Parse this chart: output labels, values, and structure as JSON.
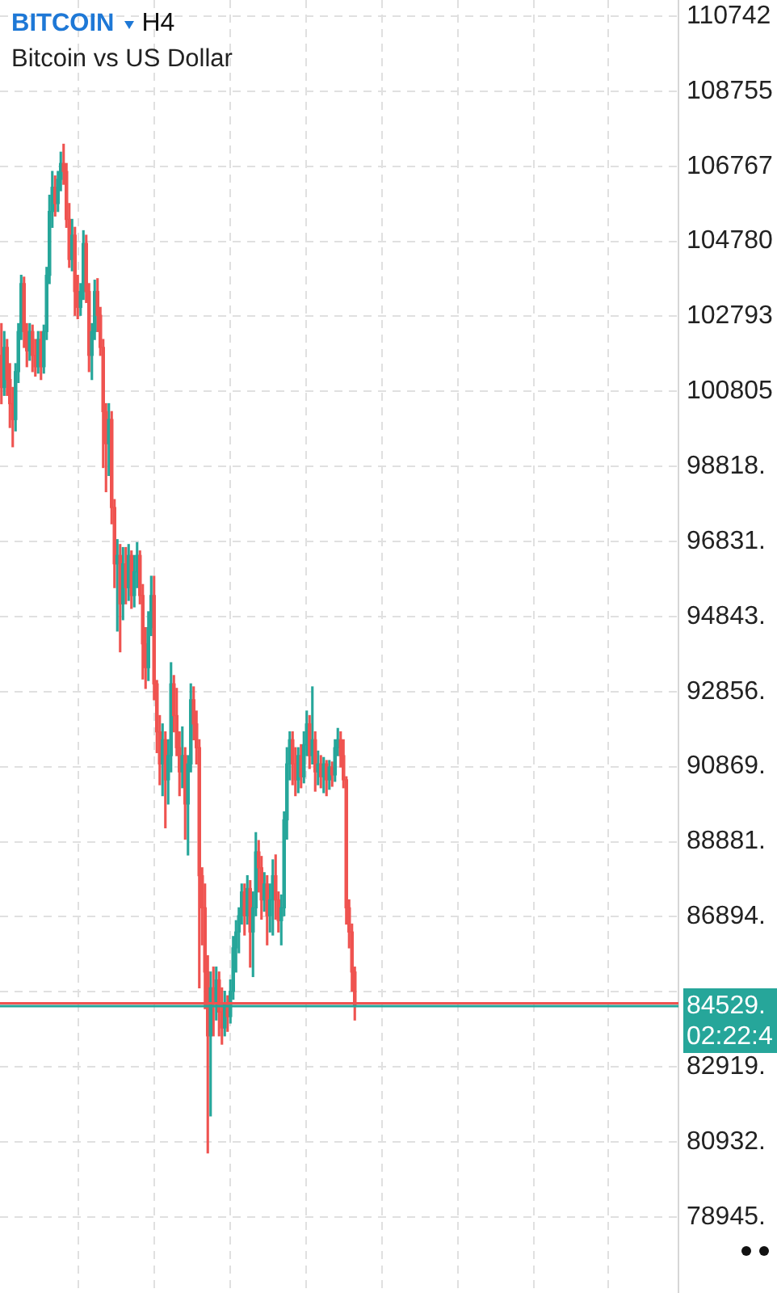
{
  "chart_data": {
    "type": "candlestick",
    "title": "BITCOIN",
    "subtitle": "Bitcoin vs US Dollar",
    "annotations": [
      "H4",
      "02:22:4"
    ],
    "categories": [
      null,
      null,
      null,
      null,
      null,
      null,
      null,
      null,
      null,
      null,
      null,
      null,
      null,
      null,
      null,
      null,
      null,
      null,
      null,
      null,
      null,
      null,
      null,
      null,
      null,
      null,
      null,
      null,
      null,
      null,
      null,
      null,
      null,
      null,
      null,
      null,
      null,
      null,
      null,
      null,
      null,
      null,
      null,
      null,
      null,
      null,
      null,
      null,
      null,
      null,
      null,
      null,
      null,
      null,
      null,
      null,
      null,
      null,
      null,
      null,
      null,
      null,
      null,
      null,
      null,
      null,
      null,
      null,
      null,
      null,
      null,
      null,
      null,
      null,
      null,
      null,
      null,
      null,
      null,
      null,
      null,
      null,
      null,
      null,
      null,
      null,
      null,
      null,
      null,
      null,
      null,
      null,
      null,
      null,
      null,
      null,
      null,
      null,
      null,
      null,
      null,
      null,
      null,
      null,
      null,
      null,
      null,
      null,
      null,
      null,
      null,
      null,
      null,
      null,
      null,
      null,
      null,
      null,
      null,
      null,
      null,
      null,
      null,
      null,
      null,
      null,
      null,
      null,
      null,
      null,
      null,
      null,
      null,
      null,
      null,
      null,
      null,
      null,
      null,
      null,
      null,
      null,
      null,
      null,
      null,
      null,
      null,
      null,
      null,
      null,
      null,
      null,
      null,
      null,
      null,
      null,
      null,
      null,
      null,
      null,
      null,
      null,
      null,
      null,
      null,
      null,
      null,
      null,
      null,
      null,
      null,
      null,
      null,
      null,
      null,
      null,
      null,
      null,
      null,
      null,
      null,
      null,
      null,
      null,
      null,
      null,
      null,
      null,
      null,
      null,
      null,
      null,
      null,
      null,
      null,
      null,
      null,
      null,
      null,
      null,
      null,
      null,
      null,
      null,
      null,
      null,
      null,
      null,
      null,
      null,
      null,
      null,
      null,
      null,
      null,
      null,
      null,
      null,
      null,
      null,
      null,
      null,
      null,
      null,
      null,
      null,
      null,
      null,
      null,
      null,
      null,
      null,
      null,
      null,
      null,
      null,
      null,
      null,
      null,
      null
    ],
    "ohlc": [
      [
        101760,
        102600,
        100480,
        100910
      ],
      [
        100910,
        102390,
        100700,
        101970
      ],
      [
        101970,
        102180,
        100700,
        101120
      ],
      [
        101120,
        101540,
        99850,
        100480
      ],
      [
        100480,
        100910,
        99340,
        100060
      ],
      [
        100060,
        101540,
        99760,
        101330
      ],
      [
        101330,
        102600,
        101040,
        102390
      ],
      [
        102390,
        103880,
        102180,
        103660
      ],
      [
        103660,
        103830,
        101970,
        102390
      ],
      [
        102390,
        102600,
        101460,
        101880
      ],
      [
        101880,
        102600,
        101630,
        102390
      ],
      [
        102390,
        102560,
        101330,
        101760
      ],
      [
        101760,
        102180,
        101210,
        101460
      ],
      [
        101460,
        102390,
        101290,
        102180
      ],
      [
        102180,
        102390,
        101120,
        101460
      ],
      [
        101460,
        102560,
        101290,
        102390
      ],
      [
        102390,
        104090,
        102180,
        103880
      ],
      [
        103880,
        106000,
        103660,
        105570
      ],
      [
        105570,
        106630,
        105150,
        106210
      ],
      [
        106210,
        106510,
        105450,
        105780
      ],
      [
        105780,
        106630,
        105570,
        106420
      ],
      [
        106420,
        107140,
        106120,
        106840
      ],
      [
        106840,
        107350,
        106290,
        106630
      ],
      [
        106630,
        106840,
        105150,
        105360
      ],
      [
        105360,
        105780,
        104090,
        104300
      ],
      [
        104300,
        105360,
        104000,
        104940
      ],
      [
        104940,
        105150,
        102820,
        103450
      ],
      [
        103450,
        103880,
        102730,
        103030
      ],
      [
        103030,
        103660,
        102820,
        103450
      ],
      [
        103450,
        105060,
        103240,
        104720
      ],
      [
        104720,
        104940,
        103160,
        103450
      ],
      [
        103450,
        103660,
        101330,
        101760
      ],
      [
        101760,
        102600,
        101120,
        102390
      ],
      [
        102390,
        103750,
        102180,
        103450
      ],
      [
        103450,
        103790,
        102390,
        102820
      ],
      [
        102820,
        103030,
        101760,
        101970
      ],
      [
        101970,
        102180,
        98790,
        100270
      ],
      [
        100270,
        100480,
        98150,
        99420
      ],
      [
        99420,
        100480,
        98580,
        100060
      ],
      [
        100060,
        100270,
        97300,
        97730
      ],
      [
        97730,
        97940,
        95610,
        96240
      ],
      [
        96240,
        96880,
        94460,
        96460
      ],
      [
        96460,
        96750,
        93910,
        95180
      ],
      [
        95180,
        96670,
        94760,
        96240
      ],
      [
        96240,
        96670,
        95180,
        95610
      ],
      [
        95610,
        96750,
        95270,
        96460
      ],
      [
        96460,
        96580,
        95060,
        95400
      ],
      [
        95400,
        96460,
        95100,
        96030
      ],
      [
        96030,
        96800,
        95610,
        96460
      ],
      [
        96460,
        96580,
        95180,
        95400
      ],
      [
        95400,
        95690,
        93190,
        94120
      ],
      [
        94120,
        94550,
        92940,
        93490
      ],
      [
        93490,
        94970,
        93150,
        94550
      ],
      [
        94550,
        95910,
        94340,
        95400
      ],
      [
        95400,
        95910,
        92640,
        93060
      ],
      [
        93060,
        93150,
        91240,
        91790
      ],
      [
        91790,
        92220,
        90390,
        90940
      ],
      [
        90940,
        92000,
        90100,
        91580
      ],
      [
        91580,
        91790,
        89250,
        90520
      ],
      [
        90520,
        91580,
        89880,
        91160
      ],
      [
        91160,
        93620,
        90730,
        93060
      ],
      [
        93060,
        93280,
        91790,
        92220
      ],
      [
        92220,
        92940,
        91160,
        91370
      ],
      [
        91370,
        91790,
        90100,
        90730
      ],
      [
        90730,
        91920,
        90310,
        91160
      ],
      [
        91160,
        91370,
        88950,
        89880
      ],
      [
        89880,
        91160,
        88530,
        90940
      ],
      [
        90940,
        93060,
        90730,
        92640
      ],
      [
        92640,
        92980,
        91580,
        92000
      ],
      [
        92000,
        92340,
        90940,
        91370
      ],
      [
        91370,
        91580,
        85010,
        87980
      ],
      [
        87980,
        88190,
        86150,
        87130
      ],
      [
        87130,
        87760,
        84460,
        85430
      ],
      [
        85430,
        85860,
        80640,
        83740
      ],
      [
        83740,
        85430,
        81620,
        85010
      ],
      [
        85010,
        85560,
        83740,
        84580
      ],
      [
        84580,
        85560,
        84160,
        85220
      ],
      [
        85220,
        85430,
        83740,
        84370
      ],
      [
        84370,
        85010,
        83520,
        83950
      ],
      [
        83950,
        84920,
        83740,
        84580
      ],
      [
        84580,
        84800,
        83860,
        84250
      ],
      [
        84250,
        85220,
        84080,
        84920
      ],
      [
        84920,
        86370,
        84710,
        86070
      ],
      [
        86070,
        86790,
        85430,
        86490
      ],
      [
        86490,
        87130,
        85940,
        86920
      ],
      [
        86920,
        87760,
        86700,
        87550
      ],
      [
        87550,
        87760,
        86410,
        86920
      ],
      [
        86920,
        87980,
        86700,
        87640
      ],
      [
        87640,
        87850,
        85560,
        86490
      ],
      [
        86490,
        87550,
        85310,
        87130
      ],
      [
        87130,
        89120,
        86920,
        88610
      ],
      [
        88610,
        88910,
        87550,
        88190
      ],
      [
        88190,
        88490,
        86830,
        87340
      ],
      [
        87340,
        88060,
        87040,
        87760
      ],
      [
        87760,
        87980,
        86150,
        86920
      ],
      [
        86920,
        87760,
        86490,
        87340
      ],
      [
        87340,
        88400,
        86410,
        87980
      ],
      [
        87980,
        88530,
        86830,
        87340
      ],
      [
        87340,
        87550,
        86490,
        86790
      ],
      [
        86790,
        87470,
        86150,
        87130
      ],
      [
        87130,
        89670,
        86920,
        89460
      ],
      [
        89460,
        91370,
        88950,
        90940
      ],
      [
        90940,
        91790,
        90520,
        91580
      ],
      [
        91580,
        91790,
        90390,
        90940
      ],
      [
        90940,
        91370,
        90100,
        90520
      ],
      [
        90520,
        91370,
        90180,
        91160
      ],
      [
        91160,
        91450,
        90310,
        90600
      ],
      [
        90600,
        91790,
        90440,
        91450
      ],
      [
        91450,
        92340,
        91160,
        92000
      ],
      [
        92000,
        92220,
        90820,
        91160
      ],
      [
        91160,
        92980,
        90940,
        91580
      ],
      [
        91580,
        91790,
        90220,
        90730
      ],
      [
        90730,
        91280,
        90390,
        90940
      ],
      [
        90940,
        91160,
        90310,
        90600
      ],
      [
        90600,
        91110,
        90180,
        90940
      ],
      [
        90940,
        91030,
        90100,
        90520
      ],
      [
        90520,
        91030,
        90270,
        90860
      ],
      [
        90860,
        90990,
        90350,
        90650
      ],
      [
        90650,
        91580,
        90480,
        91370
      ],
      [
        91370,
        91880,
        91160,
        91580
      ],
      [
        91580,
        91790,
        90860,
        91160
      ],
      [
        91160,
        91580,
        90310,
        90520
      ],
      [
        90520,
        90600,
        86700,
        87130
      ],
      [
        87130,
        87340,
        86070,
        86490
      ],
      [
        86490,
        86700,
        84920,
        85430
      ],
      [
        85430,
        85560,
        84160,
        84529
      ],
      null,
      null,
      null,
      null,
      null,
      null,
      null,
      null,
      null,
      null,
      null,
      null,
      null,
      null,
      null,
      null,
      null,
      null,
      null,
      null,
      null,
      null,
      null,
      null,
      null,
      null,
      null,
      null,
      null,
      null,
      null,
      null,
      null,
      null,
      null,
      null,
      null,
      null,
      null,
      null,
      null,
      null,
      null,
      null,
      null,
      null,
      null,
      null,
      null,
      null,
      null,
      null,
      null,
      null,
      null,
      null,
      null,
      null,
      null,
      null,
      null,
      null,
      null,
      null,
      null,
      null,
      null,
      null,
      null,
      null,
      null,
      null,
      null,
      null,
      null,
      null,
      null,
      null,
      null,
      null,
      null,
      null,
      null,
      null,
      null,
      null,
      null,
      null,
      null,
      null,
      null,
      null,
      null,
      null,
      null,
      null,
      null,
      null,
      null,
      null,
      null,
      null,
      null,
      null,
      null,
      null,
      null,
      null,
      null,
      null,
      null,
      null,
      null,
      null
    ],
    "colors": [
      "#ef5350",
      "#26a69a",
      "#ef5350",
      "#ef5350",
      "#ef5350",
      "#26a69a",
      "#26a69a",
      "#26a69a",
      "#ef5350",
      "#ef5350",
      "#26a69a",
      "#ef5350",
      "#ef5350",
      "#26a69a",
      "#ef5350",
      "#26a69a",
      "#26a69a",
      "#26a69a",
      "#26a69a",
      "#ef5350",
      "#26a69a",
      "#26a69a",
      "#ef5350",
      "#ef5350",
      "#ef5350",
      "#26a69a",
      "#ef5350",
      "#ef5350",
      "#26a69a",
      "#26a69a",
      "#ef5350",
      "#ef5350",
      "#26a69a",
      "#26a69a",
      "#ef5350",
      "#ef5350",
      "#ef5350",
      "#ef5350",
      "#26a69a",
      "#ef5350",
      "#ef5350",
      "#26a69a",
      "#ef5350",
      "#26a69a",
      "#ef5350",
      "#26a69a",
      "#ef5350",
      "#26a69a",
      "#26a69a",
      "#ef5350",
      "#ef5350",
      "#ef5350",
      "#26a69a",
      "#26a69a",
      "#ef5350",
      "#ef5350",
      "#ef5350",
      "#26a69a",
      "#ef5350",
      "#26a69a",
      "#26a69a",
      "#ef5350",
      "#ef5350",
      "#ef5350",
      "#26a69a",
      "#ef5350",
      "#26a69a",
      "#26a69a",
      "#ef5350",
      "#ef5350",
      "#ef5350",
      "#ef5350",
      "#ef5350",
      "#ef5350",
      "#26a69a",
      "#ef5350",
      "#26a69a",
      "#ef5350",
      "#ef5350",
      "#26a69a",
      "#ef5350",
      "#26a69a",
      "#26a69a",
      "#26a69a",
      "#26a69a",
      "#26a69a",
      "#ef5350",
      "#26a69a",
      "#ef5350",
      "#26a69a",
      "#26a69a",
      "#ef5350",
      "#ef5350",
      "#26a69a",
      "#ef5350",
      "#26a69a",
      "#26a69a",
      "#ef5350",
      "#ef5350",
      "#26a69a",
      "#26a69a",
      "#26a69a",
      "#26a69a",
      "#ef5350",
      "#ef5350",
      "#26a69a",
      "#ef5350",
      "#26a69a",
      "#26a69a",
      "#ef5350",
      "#26a69a",
      "#ef5350",
      "#26a69a",
      "#ef5350",
      "#26a69a",
      "#ef5350",
      "#26a69a",
      "#ef5350",
      "#26a69a",
      "#26a69a",
      "#ef5350",
      "#ef5350",
      "#ef5350",
      "#ef5350",
      "#ef5350",
      "#ef5350",
      null,
      null,
      null,
      null,
      null,
      null,
      null,
      null,
      null,
      null,
      null,
      null,
      null,
      null,
      null,
      null,
      null,
      null,
      null,
      null,
      null,
      null,
      null,
      null,
      null,
      null,
      null,
      null,
      null,
      null,
      null,
      null,
      null,
      null,
      null,
      null,
      null,
      null,
      null,
      null,
      null,
      null,
      null,
      null,
      null,
      null,
      null,
      null,
      null,
      null,
      null,
      null,
      null,
      null,
      null,
      null,
      null,
      null,
      null,
      null,
      null,
      null,
      null,
      null,
      null,
      null,
      null,
      null,
      null,
      null,
      null,
      null,
      null,
      null,
      null,
      null,
      null,
      null,
      null,
      null,
      null,
      null,
      null,
      null,
      null,
      null,
      null,
      null,
      null,
      null,
      null,
      null,
      null,
      null,
      null,
      null,
      null,
      null,
      null,
      null,
      null,
      null,
      null,
      null,
      null,
      null,
      null,
      null,
      null,
      null,
      null,
      null,
      null,
      null
    ],
    "ylim": [
      76930,
      111170
    ],
    "yticks": [
      110742,
      108755,
      106767,
      104780,
      102793,
      100805,
      {
        "value": 98818,
        "label": "98818."
      },
      {
        "value": 96831,
        "label": "96831."
      },
      {
        "value": 94843,
        "label": "94843."
      },
      {
        "value": 92856,
        "label": "92856."
      },
      {
        "value": 90869,
        "label": "90869."
      },
      {
        "value": 88881,
        "label": "88881."
      },
      {
        "value": 86894,
        "label": "86894."
      },
      {
        "value": 84907,
        "label": null
      },
      {
        "value": 82919,
        "label": "82919."
      },
      {
        "value": 80932,
        "label": "80932."
      },
      {
        "value": 78945,
        "label": "78945."
      }
    ],
    "ref_lines": [
      {
        "axis": "y",
        "value": 84600,
        "color": "#ef5350"
      },
      {
        "axis": "y",
        "value": 84529,
        "label": "84529.",
        "color": "#26a69a"
      }
    ],
    "grid": true,
    "tick_labels": "y"
  }
}
